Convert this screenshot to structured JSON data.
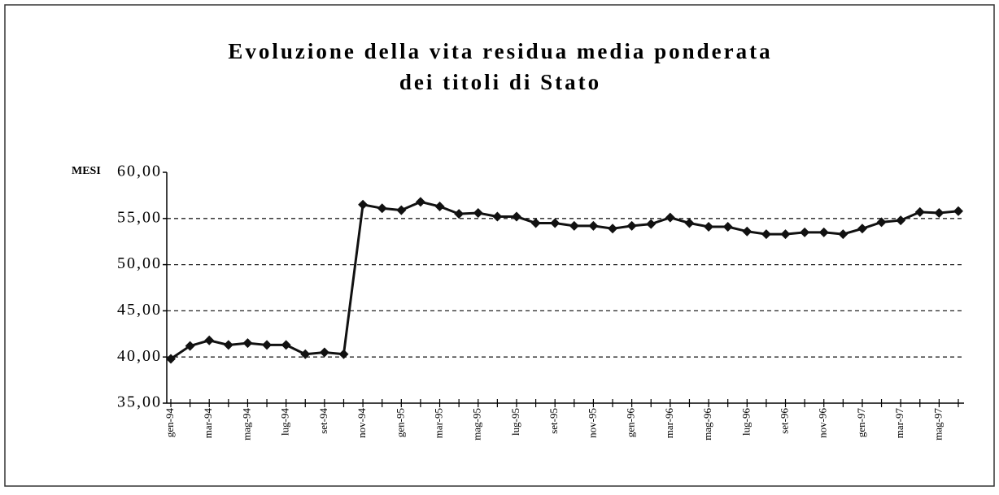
{
  "chart_data": {
    "type": "line",
    "title": [
      "Evoluzione della vita residua media ponderata",
      "dei titoli di Stato"
    ],
    "y_label": "MESI",
    "categories": [
      "gen-94",
      null,
      "mar-94",
      null,
      "mag-94",
      null,
      "lug-94",
      null,
      "set-94",
      null,
      "nov-94",
      null,
      "gen-95",
      null,
      "mar-95",
      null,
      "mag-95",
      null,
      "lug-95",
      null,
      "set-95",
      null,
      "nov-95",
      null,
      "gen-96",
      null,
      "mar-96",
      null,
      "mag-96",
      null,
      "lug-96",
      null,
      "set-96",
      null,
      "nov-96",
      null,
      "gen-97",
      null,
      "mar-97",
      null,
      "mag-97",
      null
    ],
    "series": [
      {
        "color": "#111111",
        "values": [
          39.8,
          41.2,
          41.8,
          41.3,
          41.5,
          41.3,
          41.3,
          40.3,
          40.5,
          40.3,
          56.5,
          56.1,
          55.9,
          56.8,
          56.3,
          55.5,
          55.6,
          55.2,
          55.2,
          54.5,
          54.5,
          54.2,
          54.2,
          53.9,
          54.2,
          54.4,
          55.1,
          54.5,
          54.1,
          54.1,
          53.6,
          53.3,
          53.3,
          53.5,
          53.5,
          53.3,
          53.9,
          54.6,
          54.8,
          55.7,
          55.6,
          55.8
        ]
      }
    ],
    "ylim": [
      35,
      60
    ],
    "yticks": [
      {
        "value": 35,
        "label": "35,00"
      },
      {
        "value": 40,
        "label": "40,00"
      },
      {
        "value": 45,
        "label": "45,00"
      },
      {
        "value": 50,
        "label": "50,00"
      },
      {
        "value": 55,
        "label": "55,00"
      },
      {
        "value": 60,
        "label": "60,00"
      }
    ],
    "grid": true
  }
}
